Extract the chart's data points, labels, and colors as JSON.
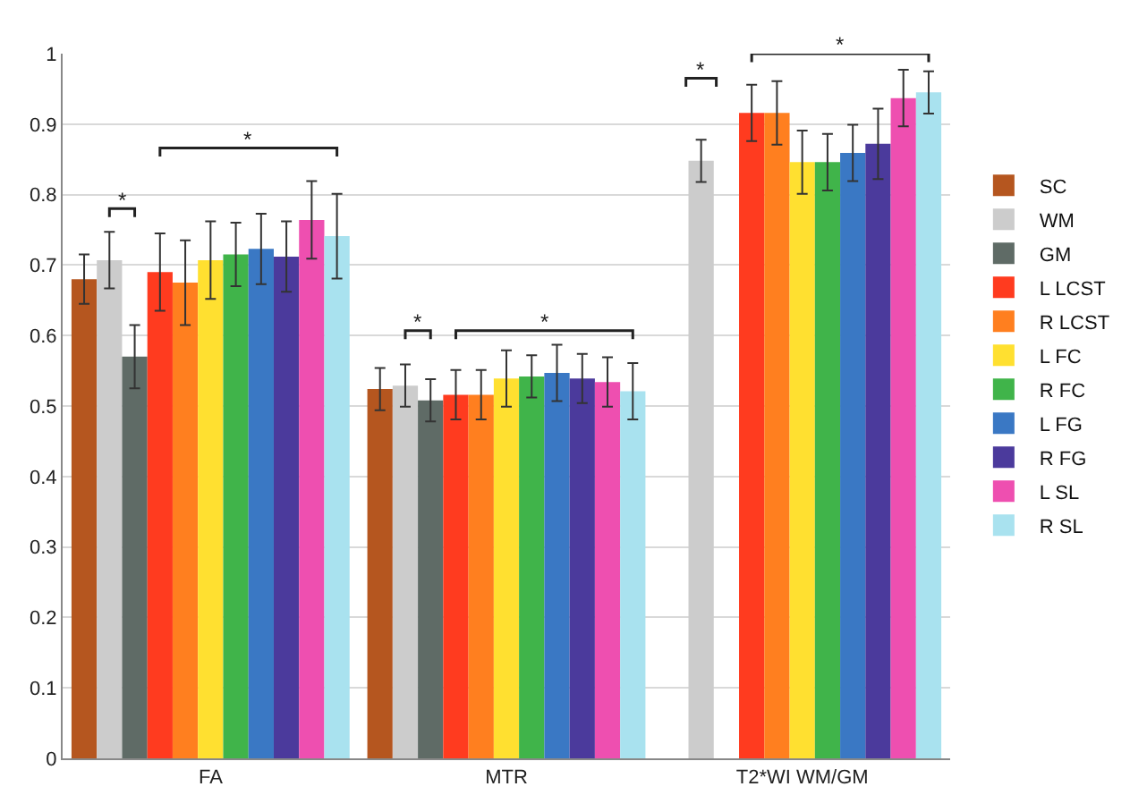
{
  "chart_data": {
    "type": "bar",
    "categories": [
      "FA",
      "MTR",
      "T2*WI WM/GM"
    ],
    "series": [
      {
        "name": "SC",
        "color": "#b5561f",
        "values": [
          0.68,
          0.524,
          null
        ],
        "errors": [
          0.035,
          0.03,
          null
        ]
      },
      {
        "name": "WM",
        "color": "#cccccc",
        "values": [
          0.707,
          0.529,
          0.848
        ],
        "errors": [
          0.04,
          0.03,
          0.03
        ]
      },
      {
        "name": "GM",
        "color": "#5f6b66",
        "values": [
          0.57,
          0.508,
          null
        ],
        "errors": [
          0.045,
          0.03,
          null
        ]
      },
      {
        "name": "L LCST",
        "color": "#ff3b1f",
        "values": [
          0.69,
          0.516,
          0.916
        ],
        "errors": [
          0.055,
          0.035,
          0.04
        ]
      },
      {
        "name": "R LCST",
        "color": "#ff7f1f",
        "values": [
          0.675,
          0.516,
          0.916
        ],
        "errors": [
          0.06,
          0.035,
          0.045
        ]
      },
      {
        "name": "L FC",
        "color": "#ffe030",
        "values": [
          0.707,
          0.539,
          0.846
        ],
        "errors": [
          0.055,
          0.04,
          0.045
        ]
      },
      {
        "name": "R FC",
        "color": "#40b44a",
        "values": [
          0.715,
          0.542,
          0.846
        ],
        "errors": [
          0.045,
          0.03,
          0.04
        ]
      },
      {
        "name": "L FG",
        "color": "#3a78c4",
        "values": [
          0.723,
          0.547,
          0.859
        ],
        "errors": [
          0.05,
          0.04,
          0.04
        ]
      },
      {
        "name": "R FG",
        "color": "#4b3a9c",
        "values": [
          0.712,
          0.539,
          0.872
        ],
        "errors": [
          0.05,
          0.035,
          0.05
        ]
      },
      {
        "name": "L SL",
        "color": "#ee4fb0",
        "values": [
          0.764,
          0.534,
          0.937
        ],
        "errors": [
          0.055,
          0.035,
          0.04
        ]
      },
      {
        "name": "R SL",
        "color": "#a9e2ef",
        "values": [
          0.741,
          0.521,
          0.945
        ],
        "errors": [
          0.06,
          0.04,
          0.03
        ]
      }
    ],
    "ylim": [
      0,
      1
    ],
    "yticks": [
      0,
      0.1,
      0.2,
      0.3,
      0.4,
      0.5,
      0.6,
      0.7,
      0.8,
      0.9,
      1
    ],
    "grid": "y",
    "legend": "right",
    "annotations": [
      "*",
      "*",
      "*",
      "*",
      "*",
      "*"
    ]
  }
}
